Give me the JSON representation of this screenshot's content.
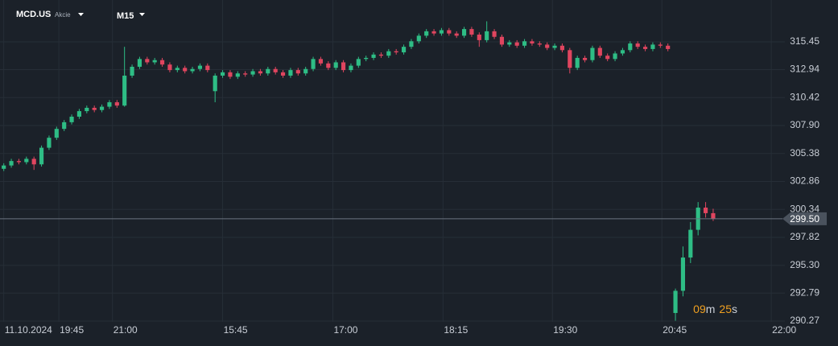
{
  "chart_data": {
    "type": "candlestick",
    "symbol": "MCD.US",
    "asset_class": "Akcie",
    "timeframe": "M15",
    "colors": {
      "up": "#2ebd85",
      "down": "#e0455f"
    },
    "grid": true,
    "xlim": [
      0,
      104
    ],
    "xticks": [
      {
        "value": 0.5,
        "label": "11.10.2024"
      },
      {
        "value": 7.8,
        "label": "19:45"
      },
      {
        "value": 14.9,
        "label": "21:00"
      },
      {
        "value": 29.5,
        "label": "15:45"
      },
      {
        "value": 44.1,
        "label": "17:00"
      },
      {
        "value": 58.7,
        "label": "18:15"
      },
      {
        "value": 73.2,
        "label": "19:30"
      },
      {
        "value": 87.7,
        "label": "20:45"
      },
      {
        "value": 102.2,
        "label": "22:00"
      }
    ],
    "ylim": [
      290.2,
      319.22
    ],
    "yticks": [
      315.45,
      312.94,
      310.42,
      {
        "value": 307.9,
        "label": "307.90"
      },
      305.38,
      302.86,
      300.34,
      297.82,
      {
        "value": 295.3,
        "label": "295.30"
      },
      292.79,
      290.27
    ],
    "price_line": {
      "value": 299.5,
      "label": "299.50"
    },
    "countdown": {
      "minutes": "09",
      "minutes_unit": "m",
      "seconds": "25",
      "seconds_unit": "s"
    },
    "candles": [
      [
        304.0,
        304.5,
        303.8,
        304.3
      ],
      [
        304.3,
        304.9,
        304.1,
        304.7
      ],
      [
        304.7,
        304.9,
        304.4,
        304.6
      ],
      [
        304.6,
        305.1,
        304.4,
        304.9
      ],
      [
        304.9,
        305.1,
        303.9,
        304.4
      ],
      [
        304.4,
        306.1,
        304.2,
        305.9
      ],
      [
        305.9,
        307.0,
        305.7,
        306.8
      ],
      [
        306.8,
        307.8,
        306.6,
        307.6
      ],
      [
        307.6,
        308.4,
        307.4,
        308.2
      ],
      [
        308.2,
        308.9,
        308.0,
        308.7
      ],
      [
        308.7,
        309.4,
        308.5,
        309.2
      ],
      [
        309.2,
        309.7,
        309.0,
        309.5
      ],
      [
        309.5,
        309.7,
        309.1,
        309.3
      ],
      [
        309.3,
        309.8,
        309.1,
        309.6
      ],
      [
        309.6,
        310.2,
        309.4,
        310.0
      ],
      [
        310.0,
        310.2,
        309.5,
        309.7
      ],
      [
        309.7,
        315.0,
        309.6,
        312.4
      ],
      [
        312.4,
        313.4,
        312.2,
        313.2
      ],
      [
        313.2,
        314.1,
        313.0,
        313.9
      ],
      [
        313.9,
        314.1,
        313.4,
        313.6
      ],
      [
        313.6,
        314.0,
        313.4,
        313.8
      ],
      [
        313.8,
        314.0,
        313.2,
        313.4
      ],
      [
        313.4,
        313.6,
        312.7,
        312.9
      ],
      [
        312.9,
        313.3,
        312.7,
        313.1
      ],
      [
        313.1,
        313.3,
        312.6,
        312.8
      ],
      [
        312.8,
        313.2,
        312.6,
        313.0
      ],
      [
        313.0,
        313.5,
        312.8,
        313.3
      ],
      [
        313.3,
        313.5,
        312.7,
        312.9
      ],
      [
        311.0,
        312.6,
        310.0,
        312.4
      ],
      [
        312.4,
        312.9,
        312.2,
        312.7
      ],
      [
        312.7,
        312.9,
        312.1,
        312.3
      ],
      [
        312.3,
        312.8,
        312.1,
        312.6
      ],
      [
        312.6,
        312.8,
        312.3,
        312.5
      ],
      [
        312.5,
        313.0,
        312.3,
        312.8
      ],
      [
        312.8,
        313.0,
        312.4,
        312.6
      ],
      [
        312.6,
        313.2,
        312.4,
        313.0
      ],
      [
        313.0,
        313.2,
        312.5,
        312.7
      ],
      [
        312.7,
        312.9,
        312.2,
        312.4
      ],
      [
        312.4,
        313.1,
        312.2,
        312.9
      ],
      [
        312.9,
        313.1,
        312.4,
        312.6
      ],
      [
        312.6,
        313.2,
        312.4,
        313.0
      ],
      [
        313.0,
        314.1,
        312.8,
        313.9
      ],
      [
        313.9,
        314.1,
        313.3,
        313.5
      ],
      [
        313.5,
        313.7,
        312.9,
        313.1
      ],
      [
        313.1,
        313.8,
        312.9,
        313.6
      ],
      [
        313.6,
        313.8,
        312.7,
        312.9
      ],
      [
        312.9,
        313.5,
        312.7,
        313.3
      ],
      [
        313.3,
        314.1,
        313.1,
        313.9
      ],
      [
        313.9,
        314.2,
        313.7,
        314.0
      ],
      [
        314.0,
        314.5,
        313.8,
        314.3
      ],
      [
        314.3,
        314.5,
        314.0,
        314.2
      ],
      [
        314.2,
        314.8,
        314.0,
        314.6
      ],
      [
        314.6,
        314.8,
        314.3,
        314.5
      ],
      [
        314.5,
        315.2,
        314.3,
        315.0
      ],
      [
        315.0,
        315.7,
        314.8,
        315.5
      ],
      [
        315.5,
        316.2,
        315.3,
        316.0
      ],
      [
        316.0,
        316.6,
        315.8,
        316.4
      ],
      [
        316.4,
        316.6,
        316.0,
        316.2
      ],
      [
        316.2,
        316.7,
        316.0,
        316.5
      ],
      [
        316.5,
        316.7,
        316.0,
        316.2
      ],
      [
        316.2,
        316.4,
        315.8,
        316.0
      ],
      [
        316.0,
        316.8,
        315.8,
        316.6
      ],
      [
        316.6,
        316.8,
        315.9,
        316.1
      ],
      [
        316.1,
        316.3,
        315.0,
        315.6
      ],
      [
        315.6,
        317.3,
        315.4,
        316.4
      ],
      [
        316.4,
        316.6,
        315.7,
        315.9
      ],
      [
        315.9,
        316.1,
        315.0,
        315.2
      ],
      [
        315.2,
        315.6,
        315.0,
        315.4
      ],
      [
        315.4,
        315.6,
        314.9,
        315.1
      ],
      [
        315.1,
        315.7,
        314.9,
        315.5
      ],
      [
        315.5,
        315.7,
        315.1,
        315.3
      ],
      [
        315.3,
        315.5,
        315.0,
        315.2
      ],
      [
        315.2,
        315.4,
        314.7,
        314.9
      ],
      [
        314.9,
        315.3,
        314.7,
        315.1
      ],
      [
        315.1,
        315.3,
        314.5,
        314.7
      ],
      [
        314.7,
        314.9,
        312.6,
        313.1
      ],
      [
        313.1,
        314.2,
        312.9,
        314.0
      ],
      [
        314.0,
        314.2,
        313.6,
        313.8
      ],
      [
        313.8,
        315.1,
        313.6,
        314.9
      ],
      [
        314.9,
        315.1,
        314.0,
        314.2
      ],
      [
        314.2,
        314.4,
        313.7,
        313.9
      ],
      [
        313.9,
        314.6,
        313.7,
        314.4
      ],
      [
        314.4,
        314.9,
        314.2,
        314.7
      ],
      [
        314.7,
        315.5,
        314.5,
        315.3
      ],
      [
        315.3,
        315.5,
        314.8,
        315.0
      ],
      [
        315.0,
        315.2,
        314.6,
        314.8
      ],
      [
        314.8,
        315.4,
        314.6,
        315.2
      ],
      [
        315.2,
        315.4,
        314.9,
        315.1
      ],
      [
        315.1,
        315.3,
        314.6,
        314.8
      ],
      [
        291.0,
        293.2,
        290.3,
        293.0
      ],
      [
        293.0,
        297.0,
        292.5,
        296.0
      ],
      [
        296.0,
        299.2,
        295.5,
        298.5
      ],
      [
        298.5,
        301.0,
        298.0,
        300.5
      ],
      [
        300.5,
        301.0,
        299.6,
        300.0
      ],
      [
        300.0,
        300.4,
        299.3,
        299.5
      ]
    ]
  }
}
